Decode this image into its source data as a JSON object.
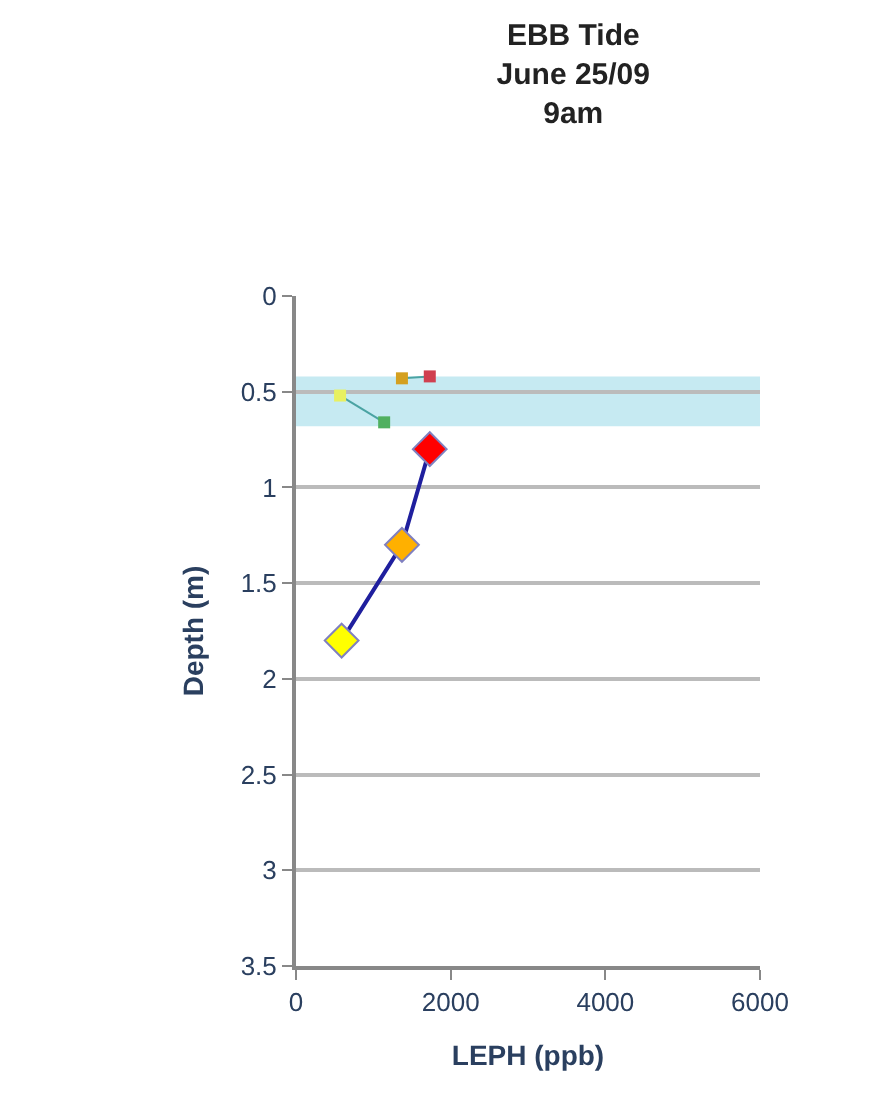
{
  "chart_data": {
    "type": "line",
    "title": "EBB Tide\nJune 25/09\n9am",
    "xlabel": "LEPH (ppb)",
    "ylabel": "Depth (m)",
    "xlim": [
      0,
      6000
    ],
    "xticks": [
      0,
      2000,
      4000,
      6000
    ],
    "ylim": [
      3.5,
      0
    ],
    "yticks": [
      0,
      0.5,
      1,
      1.5,
      2,
      2.5,
      3,
      3.5
    ],
    "grid": "y",
    "legend": false,
    "bands": [
      {
        "axis": "y",
        "from": 0.42,
        "to": 0.68,
        "color": "#c6eaf2"
      }
    ],
    "series": [
      {
        "color": "#1f1f9e",
        "marker": "diamond",
        "x": [
          1730,
          1370,
          590
        ],
        "values": [
          0.8,
          1.3,
          1.8
        ],
        "colors": [
          "#ff0000",
          "#ffb000",
          "#ffff00"
        ]
      },
      {
        "color": "#4aa3a3",
        "marker": "square",
        "x": [
          570,
          1140,
          null,
          1370,
          1730
        ],
        "values": [
          0.52,
          0.66,
          null,
          0.43,
          0.42
        ],
        "colors": [
          "#e8f060",
          "#50b060",
          null,
          "#d4a020",
          "#d04050"
        ]
      }
    ]
  }
}
